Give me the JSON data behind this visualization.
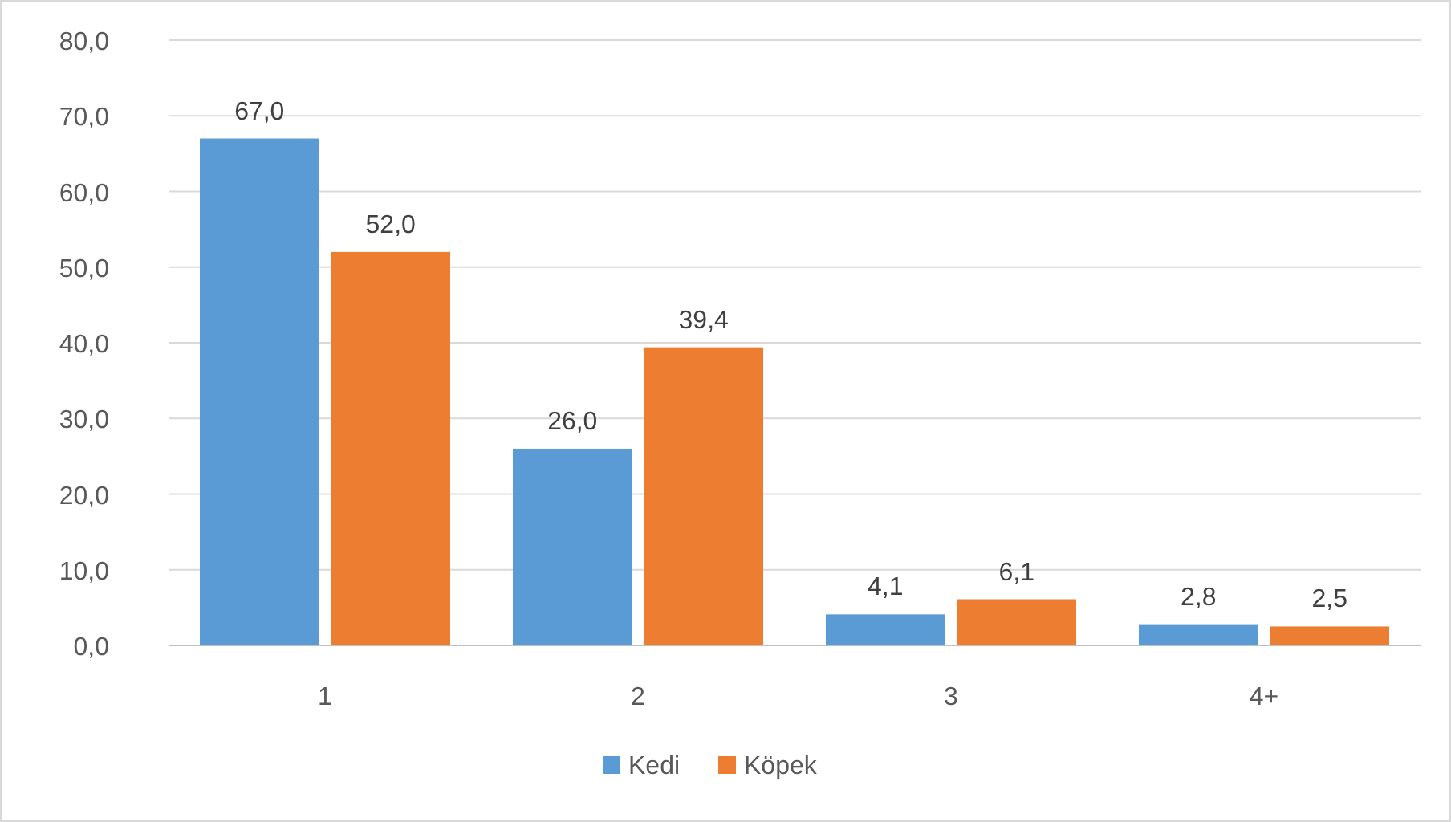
{
  "chart_data": {
    "type": "bar",
    "categories": [
      "1",
      "2",
      "3",
      "4+"
    ],
    "series": [
      {
        "name": "Kedi",
        "color": "#5b9bd5",
        "values": [
          67.0,
          26.0,
          4.1,
          2.8
        ],
        "value_labels": [
          "67,0",
          "26,0",
          "4,1",
          "2,8"
        ]
      },
      {
        "name": "Köpek",
        "color": "#ed7d31",
        "values": [
          52.0,
          39.4,
          6.1,
          2.5
        ],
        "value_labels": [
          "52,0",
          "39,4",
          "6,1",
          "2,5"
        ]
      }
    ],
    "ylim": [
      0,
      80
    ],
    "yticks": [
      {
        "value": 0,
        "label": "0,0"
      },
      {
        "value": 10,
        "label": "10,0"
      },
      {
        "value": 20,
        "label": "20,0"
      },
      {
        "value": 30,
        "label": "30,0"
      },
      {
        "value": 40,
        "label": "40,0"
      },
      {
        "value": 50,
        "label": "50,0"
      },
      {
        "value": 60,
        "label": "60,0"
      },
      {
        "value": 70,
        "label": "70,0"
      },
      {
        "value": 80,
        "label": "80,0"
      }
    ],
    "grid": "y",
    "legend": "bottom"
  }
}
